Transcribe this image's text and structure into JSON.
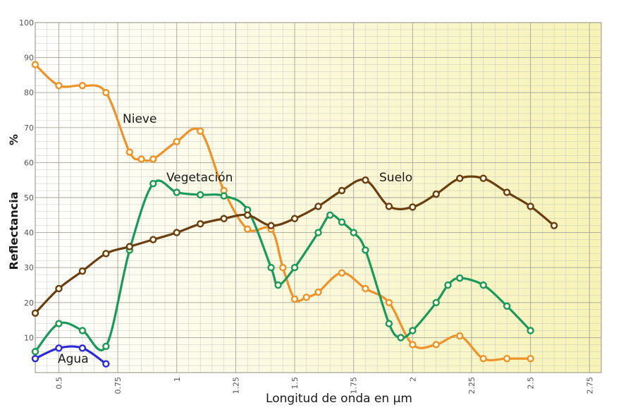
{
  "chart_data": {
    "type": "line",
    "title": "",
    "xlabel": "Longitud de onda en µm",
    "ylabel": "Reflectancia",
    "yunit": "%",
    "xlim": [
      0.4,
      2.8
    ],
    "ylim": [
      0,
      100
    ],
    "x_ticks": [
      0.5,
      0.75,
      1,
      1.25,
      1.5,
      1.75,
      2,
      2.25,
      2.5,
      2.75
    ],
    "x_tick_labels": [
      "0.5",
      "0.75",
      "1",
      "1.25",
      "1.5",
      "1.75",
      "2",
      "2.25",
      "2.5",
      "2.75"
    ],
    "y_ticks": [
      10,
      20,
      30,
      40,
      50,
      60,
      70,
      80,
      90,
      100
    ],
    "y_tick_labels": [
      "10",
      "20",
      "30",
      "40",
      "50",
      "60",
      "70",
      "80",
      "90",
      "100"
    ],
    "grid": true,
    "colors": {
      "background_start": "#ffffff",
      "background_end": "#f7f3b6",
      "grid": "#c9c9c0",
      "grid_major": "#a5a59a",
      "text": "#1a1a1a"
    },
    "series": [
      {
        "name": "Nieve",
        "color": "#f0922a",
        "points": [
          [
            0.4,
            88
          ],
          [
            0.5,
            82
          ],
          [
            0.6,
            82
          ],
          [
            0.7,
            80
          ],
          [
            0.8,
            63
          ],
          [
            0.85,
            61
          ],
          [
            0.9,
            61
          ],
          [
            1.0,
            66
          ],
          [
            1.1,
            69
          ],
          [
            1.2,
            52
          ],
          [
            1.3,
            41
          ],
          [
            1.4,
            41
          ],
          [
            1.45,
            30
          ],
          [
            1.5,
            21
          ],
          [
            1.55,
            21.5
          ],
          [
            1.6,
            23
          ],
          [
            1.7,
            28.5
          ],
          [
            1.8,
            24
          ],
          [
            1.9,
            20
          ],
          [
            2.0,
            8
          ],
          [
            2.1,
            8
          ],
          [
            2.2,
            10.5
          ],
          [
            2.3,
            4
          ],
          [
            2.4,
            4
          ],
          [
            2.5,
            4
          ]
        ]
      },
      {
        "name": "Vegetación",
        "color": "#1a9a5a",
        "points": [
          [
            0.4,
            6
          ],
          [
            0.5,
            14
          ],
          [
            0.6,
            12
          ],
          [
            0.7,
            7.5
          ],
          [
            0.8,
            35
          ],
          [
            0.9,
            54
          ],
          [
            1.0,
            51.5
          ],
          [
            1.1,
            50.8
          ],
          [
            1.2,
            50.5
          ],
          [
            1.3,
            46.5
          ],
          [
            1.4,
            30
          ],
          [
            1.43,
            25
          ],
          [
            1.5,
            30
          ],
          [
            1.6,
            40
          ],
          [
            1.65,
            45
          ],
          [
            1.7,
            43
          ],
          [
            1.75,
            40
          ],
          [
            1.8,
            35
          ],
          [
            1.9,
            14
          ],
          [
            1.95,
            10
          ],
          [
            2.0,
            12
          ],
          [
            2.1,
            20
          ],
          [
            2.15,
            25
          ],
          [
            2.2,
            27
          ],
          [
            2.3,
            25
          ],
          [
            2.4,
            19
          ],
          [
            2.5,
            12
          ]
        ]
      },
      {
        "name": "Suelo",
        "color": "#6b3e10",
        "points": [
          [
            0.4,
            17
          ],
          [
            0.5,
            24
          ],
          [
            0.6,
            29
          ],
          [
            0.7,
            34
          ],
          [
            0.8,
            36
          ],
          [
            0.9,
            38
          ],
          [
            1.0,
            40
          ],
          [
            1.1,
            42.5
          ],
          [
            1.2,
            44
          ],
          [
            1.3,
            45
          ],
          [
            1.4,
            42
          ],
          [
            1.5,
            44
          ],
          [
            1.6,
            47.5
          ],
          [
            1.7,
            52
          ],
          [
            1.8,
            55
          ],
          [
            1.9,
            47.5
          ],
          [
            2.0,
            47.3
          ],
          [
            2.1,
            51
          ],
          [
            2.2,
            55.5
          ],
          [
            2.3,
            55.5
          ],
          [
            2.4,
            51.5
          ],
          [
            2.5,
            47.5
          ],
          [
            2.6,
            42
          ]
        ]
      },
      {
        "name": "Agua",
        "color": "#2b2bd8",
        "points": [
          [
            0.4,
            4
          ],
          [
            0.5,
            7
          ],
          [
            0.6,
            7
          ],
          [
            0.7,
            2.5
          ]
        ]
      }
    ]
  }
}
